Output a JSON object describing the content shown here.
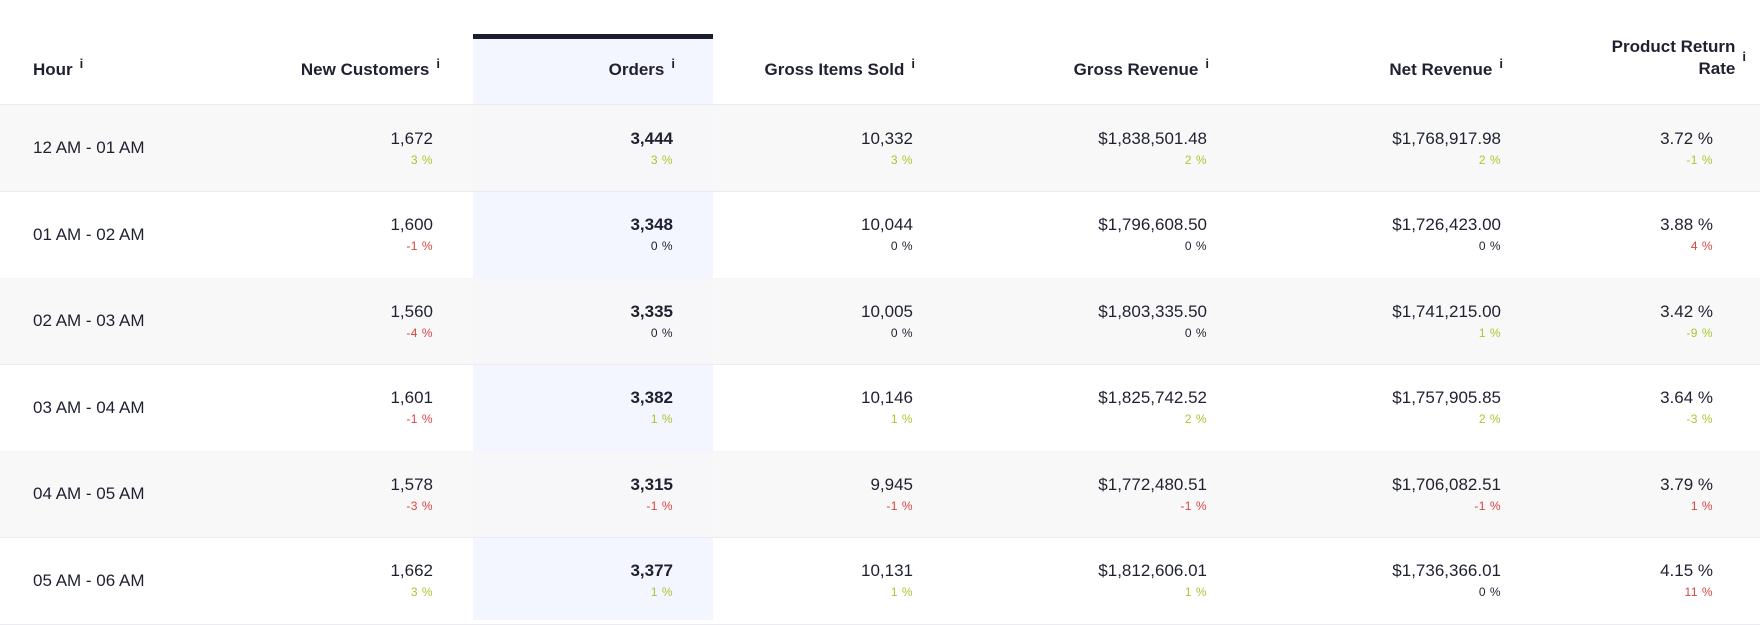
{
  "info_glyph": "i",
  "columns": [
    {
      "key": "hour",
      "label": "Hour"
    },
    {
      "key": "new_customers",
      "label": "New Customers"
    },
    {
      "key": "orders",
      "label": "Orders"
    },
    {
      "key": "gross_items_sold",
      "label": "Gross Items Sold"
    },
    {
      "key": "gross_revenue",
      "label": "Gross Revenue"
    },
    {
      "key": "net_revenue",
      "label": "Net Revenue"
    },
    {
      "key": "product_return_rate",
      "label": "Product Return Rate"
    }
  ],
  "sorted_column": "orders",
  "colors": {
    "positive": "#a7c832",
    "negative": "#d64545",
    "neutral": "#1f2130",
    "highlight": "#f3f5ff",
    "sort_bar": "#1b1c2e"
  },
  "rows": [
    {
      "hour": "12 AM - 01 AM",
      "cells": [
        {
          "value": "1,672",
          "delta": "3 %",
          "trend": "pos"
        },
        {
          "value": "3,444",
          "delta": "3 %",
          "trend": "pos"
        },
        {
          "value": "10,332",
          "delta": "3 %",
          "trend": "pos"
        },
        {
          "value": "$1,838,501.48",
          "delta": "2 %",
          "trend": "pos"
        },
        {
          "value": "$1,768,917.98",
          "delta": "2 %",
          "trend": "pos"
        },
        {
          "value": "3.72 %",
          "delta": "-1 %",
          "trend": "pos"
        }
      ]
    },
    {
      "hour": "01 AM - 02 AM",
      "cells": [
        {
          "value": "1,600",
          "delta": "-1 %",
          "trend": "neg"
        },
        {
          "value": "3,348",
          "delta": "0 %",
          "trend": "neu"
        },
        {
          "value": "10,044",
          "delta": "0 %",
          "trend": "neu"
        },
        {
          "value": "$1,796,608.50",
          "delta": "0 %",
          "trend": "neu"
        },
        {
          "value": "$1,726,423.00",
          "delta": "0 %",
          "trend": "neu"
        },
        {
          "value": "3.88 %",
          "delta": "4 %",
          "trend": "neg"
        }
      ]
    },
    {
      "hour": "02 AM - 03 AM",
      "cells": [
        {
          "value": "1,560",
          "delta": "-4 %",
          "trend": "neg"
        },
        {
          "value": "3,335",
          "delta": "0 %",
          "trend": "neu"
        },
        {
          "value": "10,005",
          "delta": "0 %",
          "trend": "neu"
        },
        {
          "value": "$1,803,335.50",
          "delta": "0 %",
          "trend": "neu"
        },
        {
          "value": "$1,741,215.00",
          "delta": "1 %",
          "trend": "pos"
        },
        {
          "value": "3.42 %",
          "delta": "-9 %",
          "trend": "pos"
        }
      ]
    },
    {
      "hour": "03 AM - 04 AM",
      "cells": [
        {
          "value": "1,601",
          "delta": "-1 %",
          "trend": "neg"
        },
        {
          "value": "3,382",
          "delta": "1 %",
          "trend": "pos"
        },
        {
          "value": "10,146",
          "delta": "1 %",
          "trend": "pos"
        },
        {
          "value": "$1,825,742.52",
          "delta": "2 %",
          "trend": "pos"
        },
        {
          "value": "$1,757,905.85",
          "delta": "2 %",
          "trend": "pos"
        },
        {
          "value": "3.64 %",
          "delta": "-3 %",
          "trend": "pos"
        }
      ]
    },
    {
      "hour": "04 AM - 05 AM",
      "cells": [
        {
          "value": "1,578",
          "delta": "-3 %",
          "trend": "neg"
        },
        {
          "value": "3,315",
          "delta": "-1 %",
          "trend": "neg"
        },
        {
          "value": "9,945",
          "delta": "-1 %",
          "trend": "neg"
        },
        {
          "value": "$1,772,480.51",
          "delta": "-1 %",
          "trend": "neg"
        },
        {
          "value": "$1,706,082.51",
          "delta": "-1 %",
          "trend": "neg"
        },
        {
          "value": "3.79 %",
          "delta": "1 %",
          "trend": "neg"
        }
      ]
    },
    {
      "hour": "05 AM - 06 AM",
      "cells": [
        {
          "value": "1,662",
          "delta": "3 %",
          "trend": "pos"
        },
        {
          "value": "3,377",
          "delta": "1 %",
          "trend": "pos"
        },
        {
          "value": "10,131",
          "delta": "1 %",
          "trend": "pos"
        },
        {
          "value": "$1,812,606.01",
          "delta": "1 %",
          "trend": "pos"
        },
        {
          "value": "$1,736,366.01",
          "delta": "0 %",
          "trend": "neu"
        },
        {
          "value": "4.15 %",
          "delta": "11 %",
          "trend": "neg"
        }
      ]
    }
  ]
}
